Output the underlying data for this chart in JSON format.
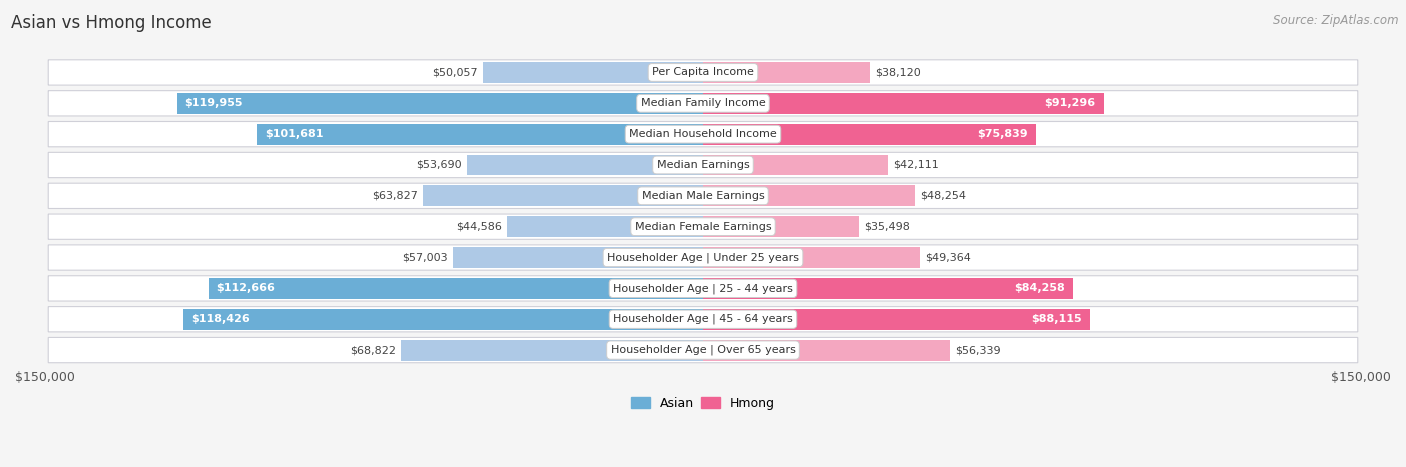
{
  "title": "Asian vs Hmong Income",
  "source": "Source: ZipAtlas.com",
  "categories": [
    "Per Capita Income",
    "Median Family Income",
    "Median Household Income",
    "Median Earnings",
    "Median Male Earnings",
    "Median Female Earnings",
    "Householder Age | Under 25 years",
    "Householder Age | 25 - 44 years",
    "Householder Age | 45 - 64 years",
    "Householder Age | Over 65 years"
  ],
  "asian_values": [
    50057,
    119955,
    101681,
    53690,
    63827,
    44586,
    57003,
    112666,
    118426,
    68822
  ],
  "hmong_values": [
    38120,
    91296,
    75839,
    42111,
    48254,
    35498,
    49364,
    84258,
    88115,
    56339
  ],
  "asian_color_dark": "#6baed6",
  "asian_color_light": "#aec9e6",
  "hmong_color_dark": "#f06292",
  "hmong_color_light": "#f4a7c0",
  "dark_threshold": 75000,
  "max_val": 150000,
  "bg_color": "#f5f5f5",
  "row_bg_color": "#ffffff",
  "row_border_color": "#d0d0d8",
  "title_fontsize": 12,
  "source_fontsize": 8.5,
  "value_fontsize": 8,
  "category_fontsize": 8,
  "legend_fontsize": 9
}
